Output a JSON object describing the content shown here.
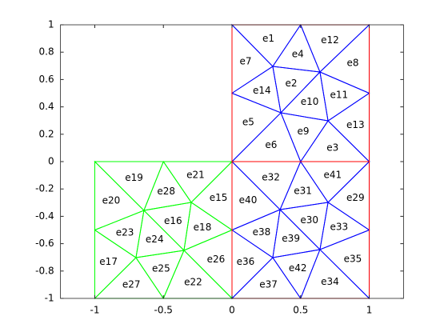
{
  "chart_data": {
    "type": "mesh",
    "xlim": [
      -1.25,
      1.25
    ],
    "ylim": [
      -1,
      1
    ],
    "xticks": [
      -1,
      -0.5,
      0,
      0.5,
      1
    ],
    "yticks": [
      -1,
      -0.8,
      -0.6,
      -0.4,
      -0.2,
      0,
      0.2,
      0.4,
      0.6,
      0.8,
      1
    ],
    "meshes": [
      {
        "color": "#0000ff",
        "elements": [
          {
            "label": "e1",
            "vertices": [
              [
                0,
                1
              ],
              [
                0.5,
                1
              ],
              [
                0.297,
                0.696
              ]
            ]
          },
          {
            "label": "e2",
            "vertices": [
              [
                0.297,
                0.696
              ],
              [
                0.641,
                0.655
              ],
              [
                0.356,
                0.357
              ]
            ]
          },
          {
            "label": "e3",
            "vertices": [
              [
                0.5,
                0
              ],
              [
                0.7,
                0.298
              ],
              [
                1,
                0
              ]
            ]
          },
          {
            "label": "e4",
            "vertices": [
              [
                0.5,
                1
              ],
              [
                0.641,
                0.655
              ],
              [
                0.297,
                0.696
              ]
            ]
          },
          {
            "label": "e5",
            "vertices": [
              [
                0,
                0.5
              ],
              [
                0.356,
                0.357
              ],
              [
                0,
                0
              ]
            ]
          },
          {
            "label": "e6",
            "vertices": [
              [
                0,
                0
              ],
              [
                0.356,
                0.357
              ],
              [
                0.5,
                0
              ]
            ]
          },
          {
            "label": "e7",
            "vertices": [
              [
                0,
                1
              ],
              [
                0.297,
                0.696
              ],
              [
                0,
                0.5
              ]
            ]
          },
          {
            "label": "e8",
            "vertices": [
              [
                1,
                1
              ],
              [
                1,
                0.5
              ],
              [
                0.641,
                0.655
              ]
            ]
          },
          {
            "label": "e9",
            "vertices": [
              [
                0.356,
                0.357
              ],
              [
                0.7,
                0.298
              ],
              [
                0.5,
                0
              ]
            ]
          },
          {
            "label": "e10",
            "vertices": [
              [
                0.641,
                0.655
              ],
              [
                0.7,
                0.298
              ],
              [
                0.356,
                0.357
              ]
            ]
          },
          {
            "label": "e11",
            "vertices": [
              [
                0.641,
                0.655
              ],
              [
                1,
                0.5
              ],
              [
                0.7,
                0.298
              ]
            ]
          },
          {
            "label": "e12",
            "vertices": [
              [
                0.5,
                1
              ],
              [
                1,
                1
              ],
              [
                0.641,
                0.655
              ]
            ]
          },
          {
            "label": "e13",
            "vertices": [
              [
                1,
                0.5
              ],
              [
                1,
                0
              ],
              [
                0.7,
                0.298
              ]
            ]
          },
          {
            "label": "e14",
            "vertices": [
              [
                0,
                0.5
              ],
              [
                0.297,
                0.696
              ],
              [
                0.356,
                0.357
              ]
            ]
          },
          {
            "label": "e29",
            "vertices": [
              [
                1,
                0
              ],
              [
                1,
                -0.5
              ],
              [
                0.7,
                -0.298
              ]
            ]
          },
          {
            "label": "e30",
            "vertices": [
              [
                0.35,
                -0.351
              ],
              [
                0.7,
                -0.298
              ],
              [
                0.641,
                -0.643
              ]
            ]
          },
          {
            "label": "e31",
            "vertices": [
              [
                0.5,
                0
              ],
              [
                0.7,
                -0.298
              ],
              [
                0.35,
                -0.351
              ]
            ]
          },
          {
            "label": "e32",
            "vertices": [
              [
                0,
                0
              ],
              [
                0.5,
                0
              ],
              [
                0.35,
                -0.351
              ]
            ]
          },
          {
            "label": "e33",
            "vertices": [
              [
                0.7,
                -0.298
              ],
              [
                1,
                -0.5
              ],
              [
                0.641,
                -0.643
              ]
            ]
          },
          {
            "label": "e34",
            "vertices": [
              [
                0.5,
                -1
              ],
              [
                0.641,
                -0.643
              ],
              [
                1,
                -1
              ]
            ]
          },
          {
            "label": "e35",
            "vertices": [
              [
                1,
                -0.5
              ],
              [
                1,
                -1
              ],
              [
                0.641,
                -0.643
              ]
            ]
          },
          {
            "label": "e36",
            "vertices": [
              [
                0,
                -0.5
              ],
              [
                0.297,
                -0.702
              ],
              [
                0,
                -1
              ]
            ]
          },
          {
            "label": "e37",
            "vertices": [
              [
                0,
                -1
              ],
              [
                0.297,
                -0.702
              ],
              [
                0.5,
                -1
              ]
            ]
          },
          {
            "label": "e38",
            "vertices": [
              [
                0,
                -0.5
              ],
              [
                0.35,
                -0.351
              ],
              [
                0.297,
                -0.702
              ]
            ]
          },
          {
            "label": "e39",
            "vertices": [
              [
                0.35,
                -0.351
              ],
              [
                0.641,
                -0.643
              ],
              [
                0.297,
                -0.702
              ]
            ]
          },
          {
            "label": "e40",
            "vertices": [
              [
                0,
                0
              ],
              [
                0.35,
                -0.351
              ],
              [
                0,
                -0.5
              ]
            ]
          },
          {
            "label": "e41",
            "vertices": [
              [
                0.5,
                0
              ],
              [
                1,
                0
              ],
              [
                0.7,
                -0.298
              ]
            ]
          },
          {
            "label": "e42",
            "vertices": [
              [
                0.297,
                -0.702
              ],
              [
                0.641,
                -0.643
              ],
              [
                0.5,
                -1
              ]
            ]
          }
        ]
      },
      {
        "color": "#00ff00",
        "elements": [
          {
            "label": "e15",
            "vertices": [
              [
                0,
                0
              ],
              [
                0,
                -0.5
              ],
              [
                -0.297,
                -0.298
              ]
            ]
          },
          {
            "label": "e16",
            "vertices": [
              [
                -0.642,
                -0.357
              ],
              [
                -0.297,
                -0.298
              ],
              [
                -0.35,
                -0.649
              ]
            ]
          },
          {
            "label": "e17",
            "vertices": [
              [
                -1,
                -0.5
              ],
              [
                -0.7,
                -0.702
              ],
              [
                -1,
                -1
              ]
            ]
          },
          {
            "label": "e18",
            "vertices": [
              [
                -0.297,
                -0.298
              ],
              [
                0,
                -0.5
              ],
              [
                -0.35,
                -0.649
              ]
            ]
          },
          {
            "label": "e19",
            "vertices": [
              [
                -1,
                0
              ],
              [
                -0.5,
                0
              ],
              [
                -0.642,
                -0.357
              ]
            ]
          },
          {
            "label": "e20",
            "vertices": [
              [
                -1,
                0
              ],
              [
                -0.642,
                -0.357
              ],
              [
                -1,
                -0.5
              ]
            ]
          },
          {
            "label": "e21",
            "vertices": [
              [
                -0.5,
                0
              ],
              [
                0,
                0
              ],
              [
                -0.297,
                -0.298
              ]
            ]
          },
          {
            "label": "e22",
            "vertices": [
              [
                -0.5,
                -1
              ],
              [
                -0.35,
                -0.649
              ],
              [
                0,
                -1
              ]
            ]
          },
          {
            "label": "e23",
            "vertices": [
              [
                -1,
                -0.5
              ],
              [
                -0.642,
                -0.357
              ],
              [
                -0.7,
                -0.702
              ]
            ]
          },
          {
            "label": "e24",
            "vertices": [
              [
                -0.642,
                -0.357
              ],
              [
                -0.35,
                -0.649
              ],
              [
                -0.7,
                -0.702
              ]
            ]
          },
          {
            "label": "e25",
            "vertices": [
              [
                -0.7,
                -0.702
              ],
              [
                -0.35,
                -0.649
              ],
              [
                -0.5,
                -1
              ]
            ]
          },
          {
            "label": "e26",
            "vertices": [
              [
                0,
                -0.5
              ],
              [
                0,
                -1
              ],
              [
                -0.35,
                -0.649
              ]
            ]
          },
          {
            "label": "e27",
            "vertices": [
              [
                -1,
                -1
              ],
              [
                -0.7,
                -0.702
              ],
              [
                -0.5,
                -1
              ]
            ]
          },
          {
            "label": "e28",
            "vertices": [
              [
                -0.5,
                0
              ],
              [
                -0.297,
                -0.298
              ],
              [
                -0.642,
                -0.357
              ]
            ]
          }
        ]
      }
    ],
    "boundaries": {
      "color": "#ff0000",
      "polygons": [
        [
          [
            0,
            0
          ],
          [
            1,
            0
          ],
          [
            1,
            1
          ],
          [
            0,
            1
          ]
        ],
        [
          [
            0,
            -1
          ],
          [
            1,
            -1
          ],
          [
            1,
            0
          ],
          [
            0,
            0
          ]
        ]
      ]
    }
  }
}
